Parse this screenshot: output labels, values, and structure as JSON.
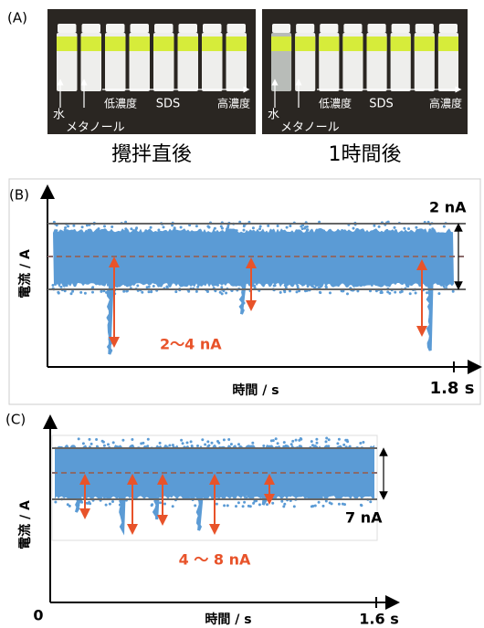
{
  "panel_a": {
    "label": "(A)",
    "photos": [
      {
        "labels": {
          "water": "水",
          "methanol": "メタノール",
          "low": "低濃度",
          "sds": "SDS",
          "high": "高濃度"
        },
        "caption": "攪拌直後"
      },
      {
        "labels": {
          "water": "水",
          "methanol": "メタノール",
          "low": "低濃度",
          "sds": "SDS",
          "high": "高濃度"
        },
        "caption": "1時間後"
      }
    ]
  },
  "panel_b": {
    "label": "(B)",
    "scale_label": "2 nA",
    "spike_label": "2～4 nA",
    "y_axis_label": "電流 / A",
    "x_axis_label": "時間 / s",
    "x_end_label": "1.8 s"
  },
  "panel_c": {
    "label": "(C)",
    "scale_label": "7 nA",
    "spike_label": "4 ～ 8 nA",
    "y_axis_label": "電流 / A",
    "x_axis_label": "時間 / s",
    "x_end_label": "1.6 s",
    "origin_label": "0"
  }
}
